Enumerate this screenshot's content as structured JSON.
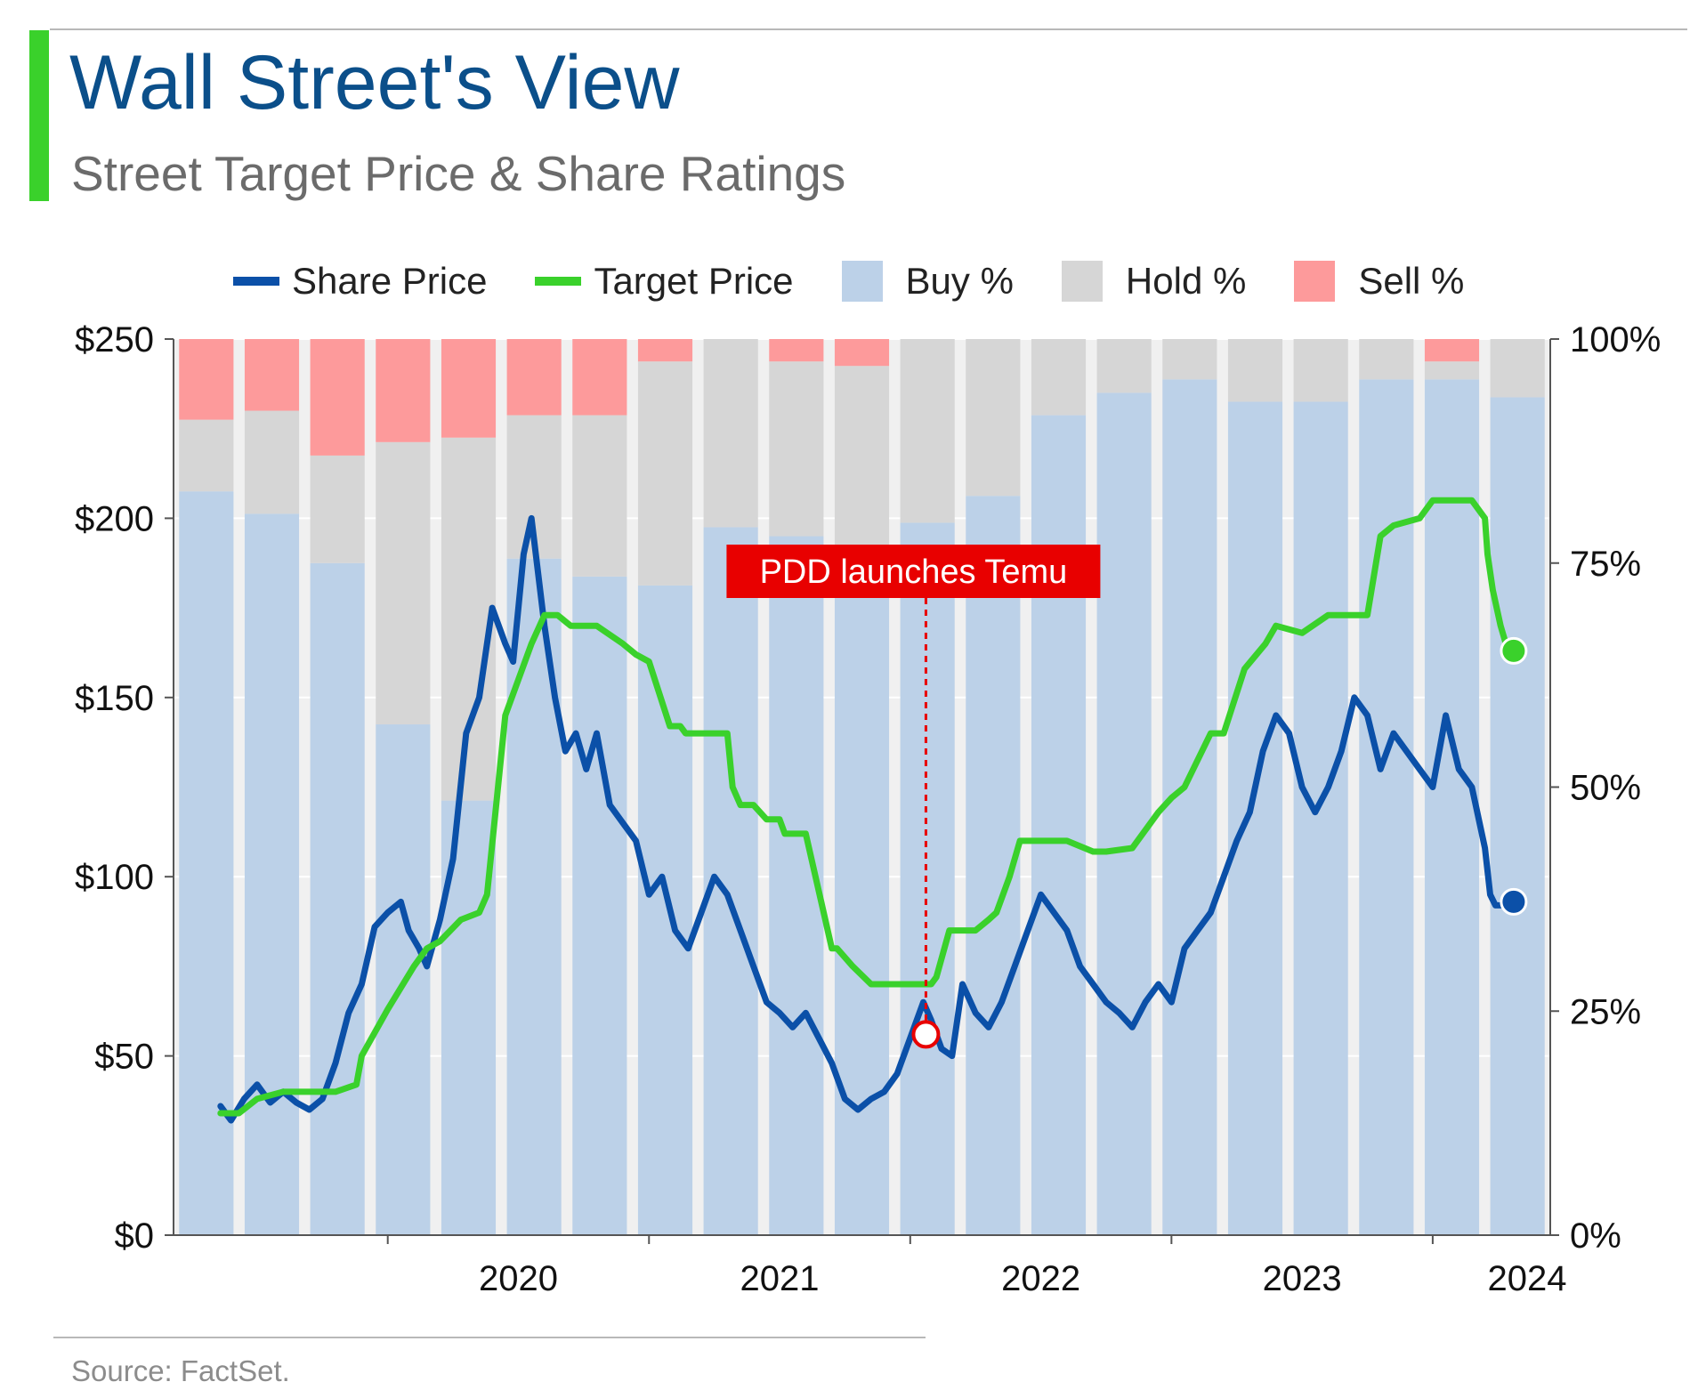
{
  "header": {
    "title": "Wall Street's View",
    "subtitle": "Street Target Price & Share Ratings",
    "accent_color": "#3ad12b"
  },
  "legend": [
    {
      "label": "Share Price",
      "kind": "line",
      "color": "#0b50a8"
    },
    {
      "label": "Target Price",
      "kind": "line",
      "color": "#3ad12b"
    },
    {
      "label": "Buy %",
      "kind": "box",
      "color": "#bcd1e8"
    },
    {
      "label": "Hold %",
      "kind": "box",
      "color": "#d6d6d6"
    },
    {
      "label": "Sell %",
      "kind": "box",
      "color": "#fd9a9b"
    }
  ],
  "footer": {
    "source": "Source: FactSet."
  },
  "chart_data": {
    "type": "line",
    "xlim": [
      2019.18,
      2024.45
    ],
    "ylim": [
      0,
      250
    ],
    "ylim_right": [
      0,
      100
    ],
    "grid": true,
    "legend_position": "top",
    "x_ticks": [
      2020,
      2021,
      2022,
      2023,
      2024
    ],
    "x_tick_labels": [
      "2020",
      "2021",
      "2022",
      "2023",
      "2024"
    ],
    "y_ticks": [
      0,
      50,
      100,
      150,
      200,
      250
    ],
    "y_tick_labels": [
      "$0",
      "$50",
      "$100",
      "$150",
      "$200",
      "$250"
    ],
    "y2_ticks": [
      0,
      25,
      50,
      75,
      100
    ],
    "y2_tick_labels": [
      "0%",
      "25%",
      "50%",
      "75%",
      "100%"
    ],
    "colors": {
      "share": "#0b50a8",
      "target": "#3ad12b",
      "buy": "#bcd1e8",
      "hold": "#d6d6d6",
      "sell": "#fd9a9b",
      "gap": "#f0f0f0",
      "annotation": "#e80000"
    },
    "ratings": {
      "quarters": [
        "2019 Q2",
        "2019 Q3",
        "2019 Q4",
        "2020 Q1",
        "2020 Q2",
        "2020 Q3",
        "2020 Q4",
        "2021 Q1",
        "2021 Q2",
        "2021 Q3",
        "2021 Q4",
        "2022 Q1",
        "2022 Q2",
        "2022 Q3",
        "2022 Q4",
        "2023 Q1",
        "2023 Q2",
        "2023 Q3",
        "2023 Q4",
        "2024 Q1",
        "2024 Q2"
      ],
      "buy": [
        83,
        80.5,
        75,
        57,
        48.5,
        75.5,
        73.5,
        72.5,
        79,
        78,
        77,
        79.5,
        82.5,
        91.5,
        94,
        95.5,
        93,
        93,
        95.5,
        95.5,
        93.5
      ],
      "hold": [
        8,
        11.5,
        12,
        31.5,
        40.5,
        16,
        18,
        25,
        21,
        19.5,
        20,
        20.5,
        17.5,
        8.5,
        6,
        4.5,
        7,
        7,
        4.5,
        2,
        6.5
      ],
      "sell": [
        9,
        8,
        13,
        11.5,
        11,
        8.5,
        8.5,
        2.5,
        0,
        2.5,
        3,
        0,
        0,
        0,
        0,
        0,
        0,
        0,
        0,
        2.5,
        0
      ]
    },
    "series": [
      {
        "name": "Share Price",
        "x": [
          2019.36,
          2019.4,
          2019.45,
          2019.5,
          2019.55,
          2019.6,
          2019.65,
          2019.7,
          2019.75,
          2019.8,
          2019.85,
          2019.9,
          2019.95,
          2020.0,
          2020.05,
          2020.08,
          2020.12,
          2020.15,
          2020.2,
          2020.25,
          2020.3,
          2020.35,
          2020.4,
          2020.45,
          2020.48,
          2020.52,
          2020.55,
          2020.6,
          2020.64,
          2020.68,
          2020.72,
          2020.76,
          2020.8,
          2020.85,
          2020.9,
          2020.95,
          2021.0,
          2021.05,
          2021.1,
          2021.15,
          2021.2,
          2021.25,
          2021.3,
          2021.35,
          2021.4,
          2021.45,
          2021.5,
          2021.55,
          2021.6,
          2021.65,
          2021.7,
          2021.75,
          2021.8,
          2021.85,
          2021.9,
          2021.95,
          2022.0,
          2022.05,
          2022.08,
          2022.12,
          2022.16,
          2022.2,
          2022.25,
          2022.3,
          2022.35,
          2022.4,
          2022.45,
          2022.5,
          2022.55,
          2022.6,
          2022.65,
          2022.7,
          2022.75,
          2022.8,
          2022.85,
          2022.9,
          2022.95,
          2023.0,
          2023.05,
          2023.1,
          2023.15,
          2023.2,
          2023.25,
          2023.3,
          2023.35,
          2023.4,
          2023.45,
          2023.5,
          2023.55,
          2023.6,
          2023.65,
          2023.7,
          2023.75,
          2023.8,
          2023.85,
          2023.9,
          2023.95,
          2024.0,
          2024.05,
          2024.1,
          2024.15,
          2024.2,
          2024.22,
          2024.24,
          2024.26,
          2024.28,
          2024.31
        ],
        "y": [
          36,
          32,
          38,
          42,
          37,
          40,
          37,
          35,
          38,
          48,
          62,
          70,
          86,
          90,
          93,
          85,
          80,
          75,
          88,
          105,
          140,
          150,
          175,
          165,
          160,
          190,
          200,
          170,
          150,
          135,
          140,
          130,
          140,
          120,
          115,
          110,
          95,
          100,
          85,
          80,
          90,
          100,
          95,
          85,
          75,
          65,
          62,
          58,
          62,
          55,
          48,
          38,
          35,
          38,
          40,
          45,
          55,
          65,
          60,
          52,
          50,
          70,
          62,
          58,
          65,
          75,
          85,
          95,
          90,
          85,
          75,
          70,
          65,
          62,
          58,
          65,
          70,
          65,
          80,
          85,
          90,
          100,
          110,
          118,
          135,
          145,
          140,
          125,
          118,
          125,
          135,
          150,
          145,
          130,
          140,
          135,
          130,
          125,
          145,
          130,
          125,
          108,
          95,
          92,
          92,
          93,
          93
        ]
      },
      {
        "name": "Target Price",
        "x": [
          2019.36,
          2019.43,
          2019.5,
          2019.6,
          2019.7,
          2019.8,
          2019.88,
          2019.9,
          2020.0,
          2020.1,
          2020.15,
          2020.2,
          2020.28,
          2020.35,
          2020.38,
          2020.45,
          2020.5,
          2020.55,
          2020.6,
          2020.65,
          2020.7,
          2020.8,
          2020.9,
          2020.95,
          2021.0,
          2021.08,
          2021.12,
          2021.14,
          2021.2,
          2021.3,
          2021.32,
          2021.35,
          2021.4,
          2021.45,
          2021.5,
          2021.52,
          2021.6,
          2021.7,
          2021.72,
          2021.78,
          2021.85,
          2021.95,
          2022.0,
          2022.08,
          2022.1,
          2022.15,
          2022.25,
          2022.3,
          2022.33,
          2022.38,
          2022.42,
          2022.5,
          2022.55,
          2022.6,
          2022.7,
          2022.75,
          2022.85,
          2022.95,
          2023.0,
          2023.05,
          2023.15,
          2023.2,
          2023.28,
          2023.36,
          2023.4,
          2023.5,
          2023.6,
          2023.65,
          2023.75,
          2023.8,
          2023.85,
          2023.95,
          2024.0,
          2024.05,
          2024.1,
          2024.15,
          2024.2,
          2024.21,
          2024.23,
          2024.26,
          2024.28,
          2024.31
        ],
        "y": [
          34,
          34,
          38,
          40,
          40,
          40,
          42,
          50,
          63,
          75,
          80,
          82,
          88,
          90,
          95,
          145,
          155,
          165,
          173,
          173,
          170,
          170,
          165,
          162,
          160,
          142,
          142,
          140,
          140,
          140,
          125,
          120,
          120,
          116,
          116,
          112,
          112,
          80,
          80,
          75,
          70,
          70,
          70,
          70,
          72,
          85,
          85,
          88,
          90,
          100,
          110,
          110,
          110,
          110,
          107,
          107,
          108,
          118,
          122,
          125,
          140,
          140,
          158,
          165,
          170,
          168,
          173,
          173,
          173,
          195,
          198,
          200,
          205,
          205,
          205,
          205,
          200,
          190,
          180,
          170,
          165,
          163
        ]
      }
    ],
    "annotations": [
      {
        "text": "PDD launches Temu",
        "x": 2022.06,
        "y": 56
      }
    ]
  }
}
